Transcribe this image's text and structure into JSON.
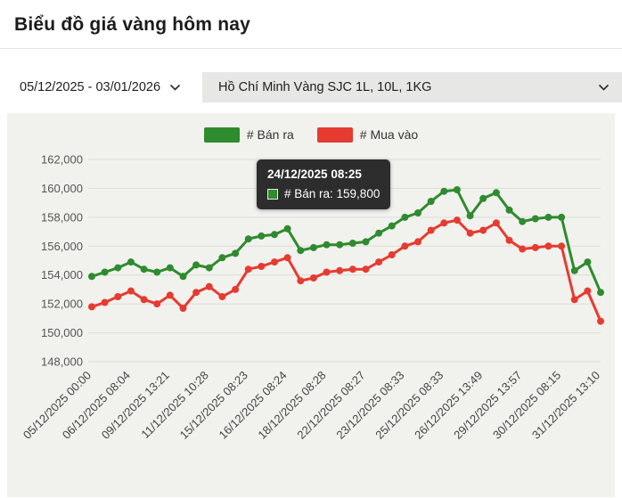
{
  "page": {
    "title": "Biểu đồ giá vàng hôm nay"
  },
  "filters": {
    "date_range": {
      "value": "05/12/2025 - 03/01/2026"
    },
    "market": {
      "value": "Hồ Chí Minh Vàng SJC 1L, 10L, 1KG"
    }
  },
  "tooltip": {
    "title": "24/12/2025 08:25",
    "series_value": "# Bán ra: 159,800",
    "marker_color": "#2e8b2e"
  },
  "colors": {
    "sell_green": "#2e8b2e",
    "buy_red": "#e63b30",
    "panel_bg": "#f1f1ee",
    "grid": "#dcdcd8"
  },
  "chart_data": {
    "type": "line",
    "title": "",
    "xlabel": "",
    "ylabel": "",
    "ylim": [
      148000,
      162000
    ],
    "y_step": 2000,
    "grid": "horizontal",
    "legend_position": "top",
    "label_every": 3,
    "x_tick_labels": [
      "05/12/2025 00:00",
      "06/12/2025 08:04",
      "09/12/2025 13:21",
      "11/12/2025 10:28",
      "15/12/2025 08:23",
      "16/12/2025 08:24",
      "18/12/2025 08:28",
      "22/12/2025 08:27",
      "23/12/2025 08:33",
      "25/12/2025 08:33",
      "26/12/2025 13:49",
      "29/12/2025 13:57",
      "30/12/2025 08:15",
      "31/12/2025 13:10"
    ],
    "series": [
      {
        "name": "# Bán ra",
        "color": "#2e8b2e",
        "values": [
          153900,
          154200,
          154500,
          154900,
          154400,
          154200,
          154500,
          153900,
          154700,
          154500,
          155200,
          155500,
          156500,
          156700,
          156800,
          157200,
          155700,
          155900,
          156100,
          156100,
          156200,
          156300,
          156900,
          157400,
          158000,
          158300,
          159100,
          159800,
          159900,
          158100,
          159300,
          159700,
          158500,
          157700,
          157900,
          158000,
          158000,
          154300,
          154900,
          152800
        ]
      },
      {
        "name": "# Mua vào",
        "color": "#e63b30",
        "values": [
          151800,
          152100,
          152500,
          152900,
          152300,
          152000,
          152600,
          151700,
          152800,
          153200,
          152500,
          153000,
          154400,
          154600,
          154900,
          155200,
          153600,
          153800,
          154200,
          154300,
          154400,
          154400,
          154900,
          155400,
          156000,
          156300,
          157100,
          157600,
          157800,
          156900,
          157100,
          157600,
          156400,
          155800,
          155900,
          156000,
          156000,
          152300,
          152900,
          150800
        ]
      }
    ]
  }
}
